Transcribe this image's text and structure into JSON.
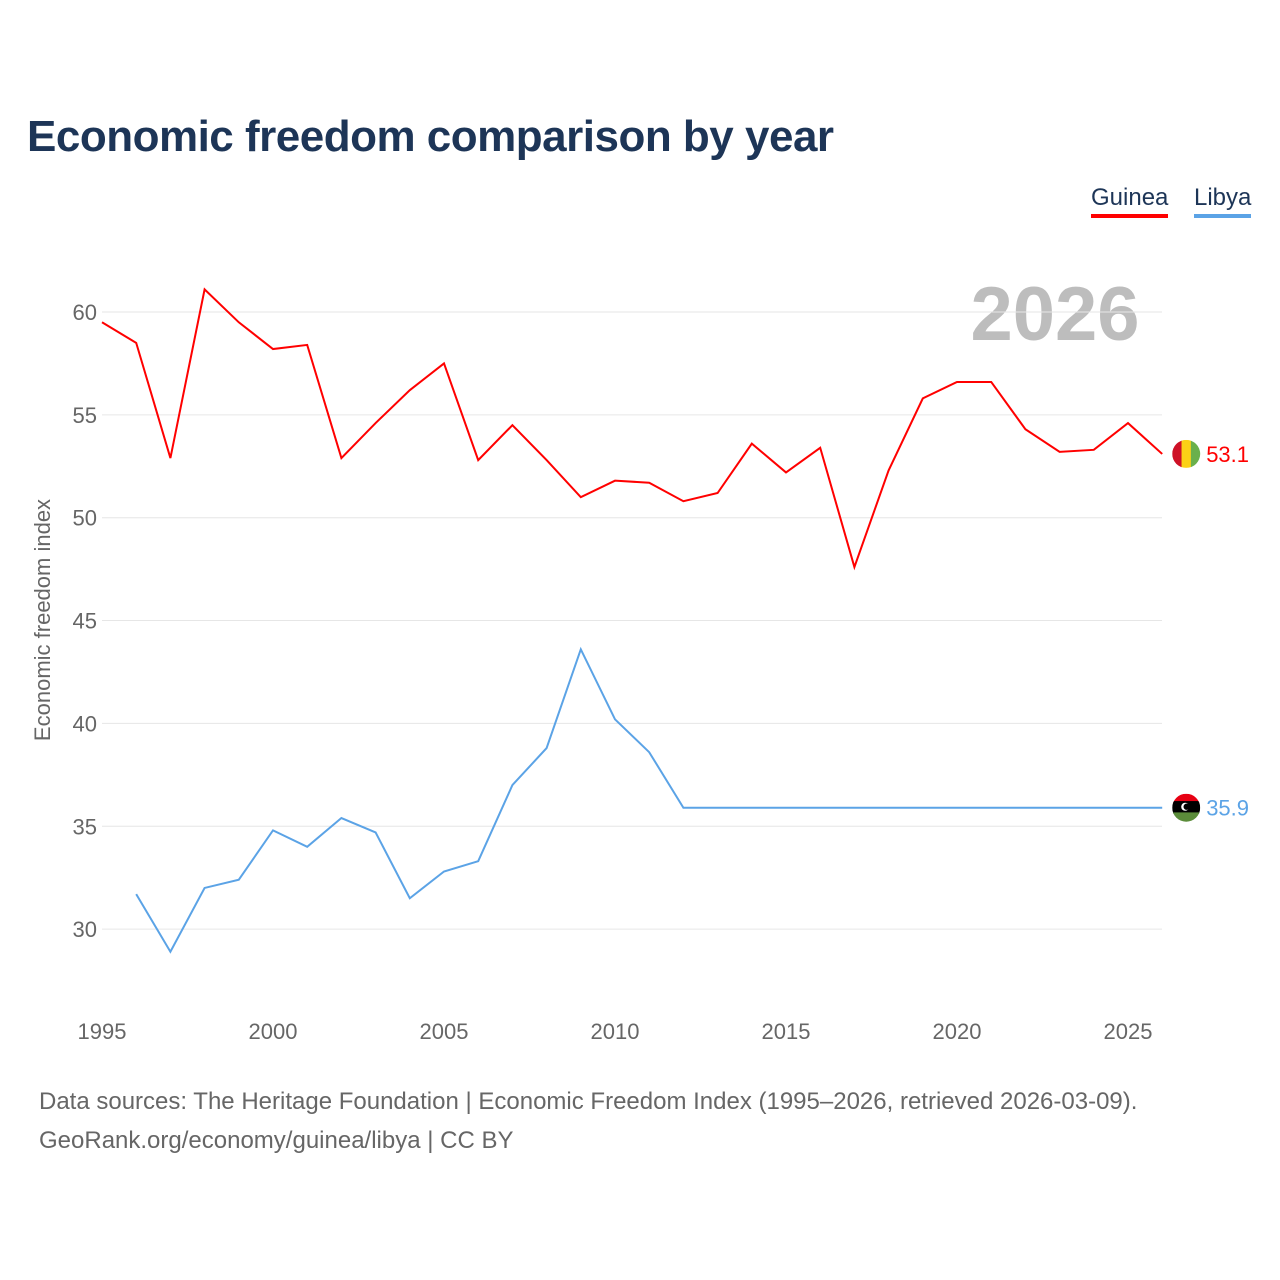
{
  "title": "Economic freedom comparison by year",
  "legend": [
    "Guinea",
    "Libya"
  ],
  "year_label": "2026",
  "source_line1": "Data sources: The Heritage Foundation | Economic Freedom Index (1995–2026, retrieved 2026-03-09).",
  "source_line2": "GeoRank.org/economy/guinea/libya | CC BY",
  "chart_data": {
    "type": "line",
    "title": "Economic freedom comparison by year",
    "xlabel": "",
    "ylabel": "Economic freedom index",
    "xlim": [
      1995,
      2026
    ],
    "ylim": [
      26,
      63
    ],
    "xticks": [
      1995,
      2000,
      2005,
      2010,
      2015,
      2020,
      2025
    ],
    "yticks": [
      30,
      35,
      40,
      45,
      50,
      55,
      60
    ],
    "grid": true,
    "legend_position": "top-right",
    "series": [
      {
        "name": "Guinea",
        "color": "#ff0000",
        "end_label": "53.1",
        "x": [
          1995,
          1996,
          1997,
          1998,
          1999,
          2000,
          2001,
          2002,
          2003,
          2004,
          2005,
          2006,
          2007,
          2008,
          2009,
          2010,
          2011,
          2012,
          2013,
          2014,
          2015,
          2016,
          2017,
          2018,
          2019,
          2020,
          2021,
          2022,
          2023,
          2024,
          2025,
          2026
        ],
        "y": [
          59.5,
          58.5,
          52.9,
          61.1,
          59.5,
          58.2,
          58.4,
          52.9,
          54.6,
          56.2,
          57.5,
          52.8,
          54.5,
          52.8,
          51.0,
          51.8,
          51.7,
          50.8,
          51.2,
          53.6,
          52.2,
          53.4,
          47.6,
          52.3,
          55.8,
          56.6,
          56.6,
          54.3,
          53.2,
          53.3,
          54.6,
          53.1
        ]
      },
      {
        "name": "Libya",
        "color": "#5ba3e6",
        "end_label": "35.9",
        "x": [
          1996,
          1997,
          1998,
          1999,
          2000,
          2001,
          2002,
          2003,
          2004,
          2005,
          2006,
          2007,
          2008,
          2009,
          2010,
          2011,
          2012,
          2013,
          2014,
          2015,
          2016,
          2017,
          2018,
          2019,
          2020,
          2021,
          2022,
          2023,
          2024,
          2025,
          2026
        ],
        "y": [
          31.7,
          28.9,
          32.0,
          32.4,
          34.8,
          34.0,
          35.4,
          34.7,
          31.5,
          32.8,
          33.3,
          37.0,
          38.8,
          43.6,
          40.2,
          38.6,
          35.9,
          35.9,
          35.9,
          35.9,
          35.9,
          35.9,
          35.9,
          35.9,
          35.9,
          35.9,
          35.9,
          35.9,
          35.9,
          35.9,
          35.9
        ]
      }
    ]
  }
}
